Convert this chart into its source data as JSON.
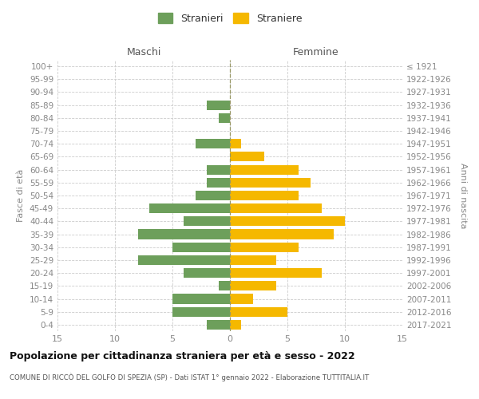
{
  "age_groups": [
    "0-4",
    "5-9",
    "10-14",
    "15-19",
    "20-24",
    "25-29",
    "30-34",
    "35-39",
    "40-44",
    "45-49",
    "50-54",
    "55-59",
    "60-64",
    "65-69",
    "70-74",
    "75-79",
    "80-84",
    "85-89",
    "90-94",
    "95-99",
    "100+"
  ],
  "birth_years": [
    "2017-2021",
    "2012-2016",
    "2007-2011",
    "2002-2006",
    "1997-2001",
    "1992-1996",
    "1987-1991",
    "1982-1986",
    "1977-1981",
    "1972-1976",
    "1967-1971",
    "1962-1966",
    "1957-1961",
    "1952-1956",
    "1947-1951",
    "1942-1946",
    "1937-1941",
    "1932-1936",
    "1927-1931",
    "1922-1926",
    "≤ 1921"
  ],
  "males": [
    2,
    5,
    5,
    1,
    4,
    8,
    5,
    8,
    4,
    7,
    3,
    2,
    2,
    0,
    3,
    0,
    1,
    2,
    0,
    0,
    0
  ],
  "females": [
    1,
    5,
    2,
    4,
    8,
    4,
    6,
    9,
    10,
    8,
    6,
    7,
    6,
    3,
    1,
    0,
    0,
    0,
    0,
    0,
    0
  ],
  "male_color": "#6d9f5b",
  "female_color": "#f5b800",
  "title": "Popolazione per cittadinanza straniera per età e sesso - 2022",
  "subtitle": "COMUNE DI RICCÒ DEL GOLFO DI SPEZIA (SP) - Dati ISTAT 1° gennaio 2022 - Elaborazione TUTTITALIA.IT",
  "xlabel_left": "Maschi",
  "xlabel_right": "Femmine",
  "ylabel_left": "Fasce di età",
  "ylabel_right": "Anni di nascita",
  "legend_males": "Stranieri",
  "legend_females": "Straniere",
  "xlim": 15,
  "background_color": "#ffffff",
  "grid_color": "#cccccc"
}
